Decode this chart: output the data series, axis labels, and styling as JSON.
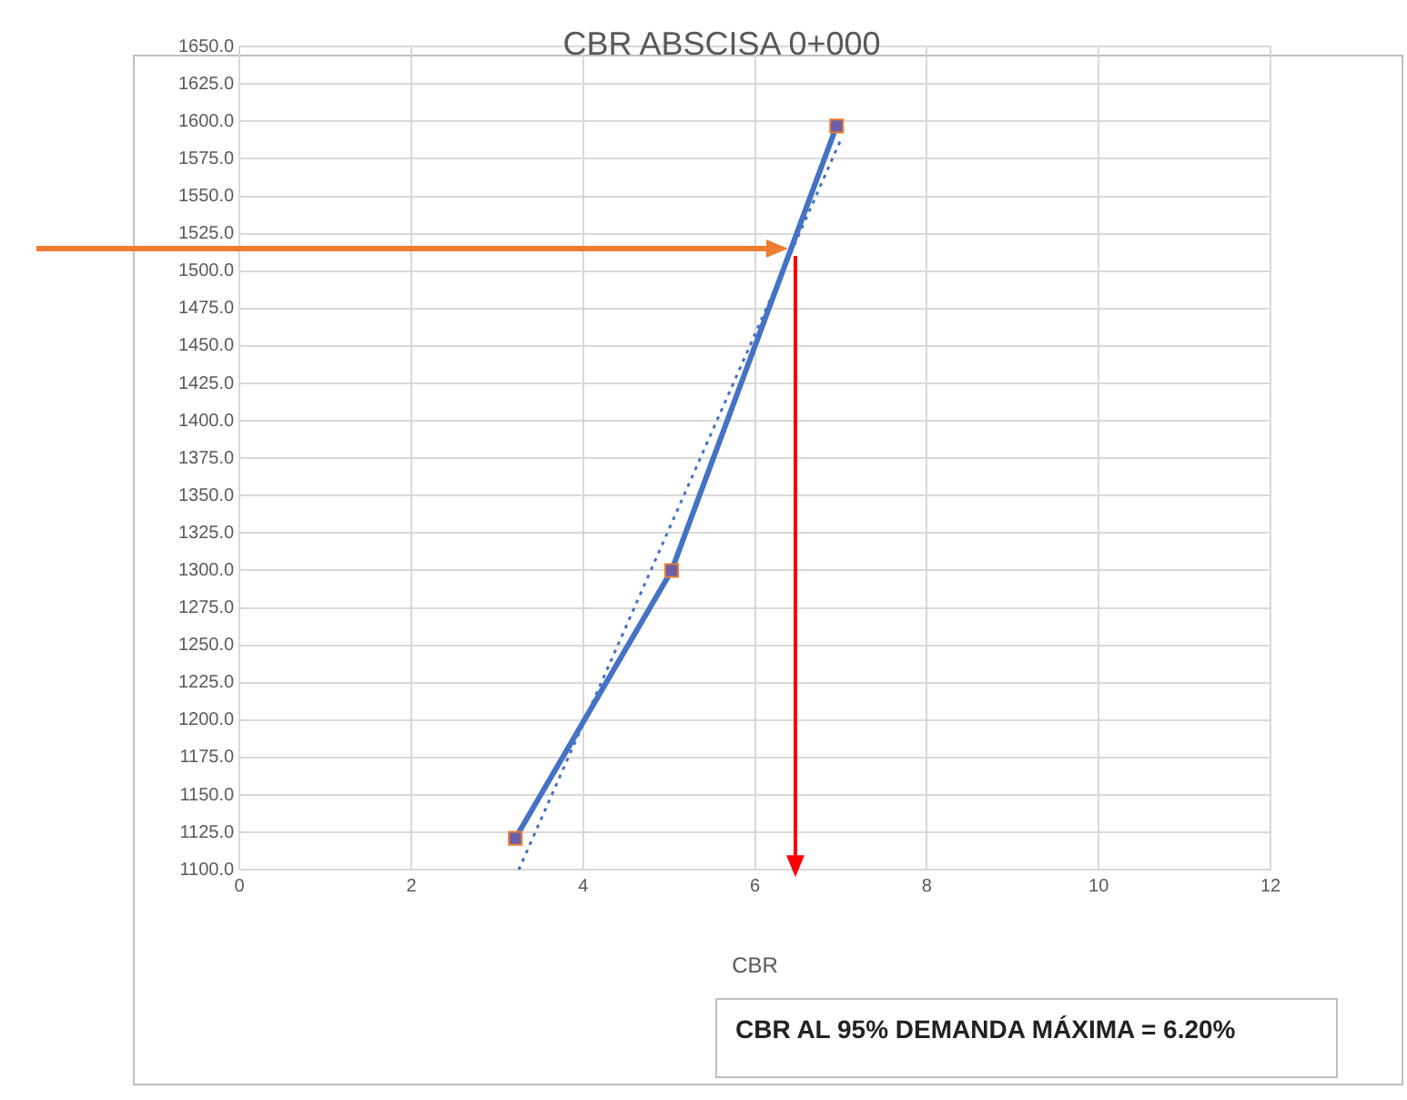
{
  "chart_data": {
    "type": "scatter",
    "title": "CBR ABSCISA 0+000",
    "xlabel": "CBR",
    "series": [
      {
        "type": "line",
        "color": "#4472c4",
        "x": [
          3.21,
          5.03,
          6.95
        ],
        "values": [
          1121,
          1300,
          1597
        ],
        "marker": "square"
      },
      {
        "type": "line",
        "color": "#4472c4",
        "x": [
          3.25,
          7.0
        ],
        "values": [
          1100,
          1588
        ],
        "marker": "none",
        "line_style": "dotted"
      }
    ],
    "xlim": [
      0,
      12
    ],
    "xticks": [
      0,
      2,
      4,
      6,
      8,
      10,
      12
    ],
    "ylim": [
      1100,
      1650
    ],
    "yticks": [
      {
        "value": 1100,
        "label": "1100.0"
      },
      {
        "value": 1125,
        "label": "1125.0"
      },
      {
        "value": 1150,
        "label": "1150.0"
      },
      {
        "value": 1175,
        "label": "1175.0"
      },
      {
        "value": 1200,
        "label": "1200.0"
      },
      {
        "value": 1225,
        "label": "1225.0"
      },
      {
        "value": 1250,
        "label": "1250.0"
      },
      {
        "value": 1275,
        "label": "1275.0"
      },
      {
        "value": 1300,
        "label": "1300.0"
      },
      {
        "value": 1325,
        "label": "1325.0"
      },
      {
        "value": 1350,
        "label": "1350.0"
      },
      {
        "value": 1375,
        "label": "1375.0"
      },
      {
        "value": 1400,
        "label": "1400.0"
      },
      {
        "value": 1425,
        "label": "1425.0"
      },
      {
        "value": 1450,
        "label": "1450.0"
      },
      {
        "value": 1475,
        "label": "1475.0"
      },
      {
        "value": 1500,
        "label": "1500.0"
      },
      {
        "value": 1525,
        "label": "1525.0"
      },
      {
        "value": 1550,
        "label": "1550.0"
      },
      {
        "value": 1575,
        "label": "1575.0"
      },
      {
        "value": 1600,
        "label": "1600.0"
      },
      {
        "value": 1625,
        "label": "1625.0"
      },
      {
        "value": 1650,
        "label": "1650.0"
      }
    ],
    "ref_lines": [
      {
        "axis": "y",
        "value": 1515,
        "color": "#ed7d31"
      },
      {
        "axis": "x",
        "value": 6.47,
        "color": "#ff0000"
      }
    ],
    "annotations": [
      "CBR AL 95% DEMANDA MÁXIMA = 6.20%"
    ],
    "grid": true,
    "legend": false
  }
}
